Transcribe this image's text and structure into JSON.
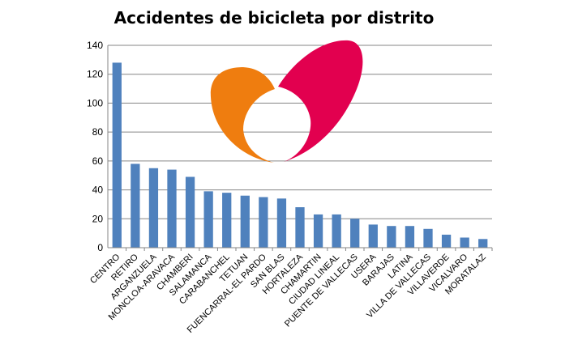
{
  "chart_data": {
    "type": "bar",
    "title": "Accidentes de bicicleta por distrito",
    "xlabel": "",
    "ylabel": "",
    "ylim": [
      0,
      140
    ],
    "yticks": [
      0,
      20,
      40,
      60,
      80,
      100,
      120,
      140
    ],
    "grid": true,
    "legend": "none",
    "bar_color": "#4F81BD",
    "categories": [
      "CENTRO",
      "RETIRO",
      "ARGANZUELA",
      "MONCLOA-ARAVACA",
      "CHAMBERI",
      "SALAMANCA",
      "CARABANCHEL",
      "TETUAN",
      "FUENCARRAL-EL PARDO",
      "SAN BLAS",
      "HORTALEZA",
      "CHAMARTIN",
      "CIUDAD LINEAL",
      "PUENTE DE VALLECAS",
      "USERA",
      "BARAJAS",
      "LATINA",
      "VILLA DE VALLECAS",
      "VILLAVERDE",
      "VICALVARO",
      "MORATALAZ"
    ],
    "values": [
      128,
      58,
      55,
      54,
      49,
      39,
      38,
      36,
      35,
      34,
      28,
      23,
      23,
      20,
      16,
      15,
      15,
      13,
      9,
      7,
      6
    ]
  },
  "logo": {
    "orange": "#EF7D0F",
    "crimson": "#E2004F"
  }
}
